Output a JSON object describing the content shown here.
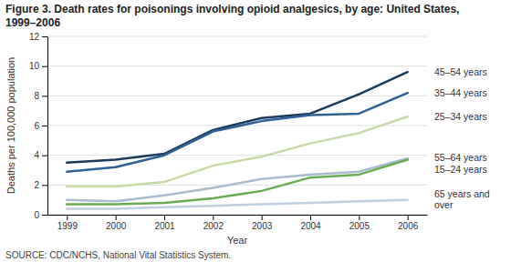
{
  "chart_data": {
    "type": "line",
    "title": "Figure 3. Death rates for poisonings involving opioid analgesics, by age: United States, 1999–2006",
    "xlabel": "Year",
    "ylabel": "Deaths per 100,000 population",
    "source": "SOURCE: CDC/NCHS, National Vital Statistics System.",
    "x": [
      1999,
      2000,
      2001,
      2002,
      2003,
      2004,
      2005,
      2006
    ],
    "series": [
      {
        "name": "45–54 years",
        "color": "#1a3a5c",
        "values": [
          3.5,
          3.7,
          4.1,
          5.7,
          6.5,
          6.8,
          8.1,
          9.6
        ]
      },
      {
        "name": "35–44 years",
        "color": "#2e6096",
        "values": [
          2.9,
          3.2,
          4.0,
          5.6,
          6.3,
          6.7,
          6.8,
          8.2
        ]
      },
      {
        "name": "25–34 years",
        "color": "#c8daa8",
        "values": [
          1.9,
          1.9,
          2.2,
          3.3,
          3.9,
          4.8,
          5.5,
          6.6
        ]
      },
      {
        "name": "55–64 years",
        "color": "#a8bcd0",
        "values": [
          1.0,
          0.9,
          1.3,
          1.8,
          2.4,
          2.7,
          2.9,
          3.8
        ]
      },
      {
        "name": "15–24 years",
        "color": "#6aaa50",
        "values": [
          0.7,
          0.7,
          0.8,
          1.1,
          1.6,
          2.5,
          2.7,
          3.7
        ]
      },
      {
        "name": "65 years and\nover",
        "color": "#c0cfe0",
        "values": [
          0.4,
          0.4,
          0.5,
          0.6,
          0.7,
          0.8,
          0.9,
          1.0
        ]
      }
    ],
    "xlim": [
      1998.6,
      2006.4
    ],
    "xticks": [
      1999,
      2000,
      2001,
      2002,
      2003,
      2004,
      2005,
      2006
    ],
    "ylim": [
      0,
      12
    ],
    "yticks": [
      0,
      2,
      4,
      6,
      8,
      10,
      12
    ],
    "grid": true
  }
}
